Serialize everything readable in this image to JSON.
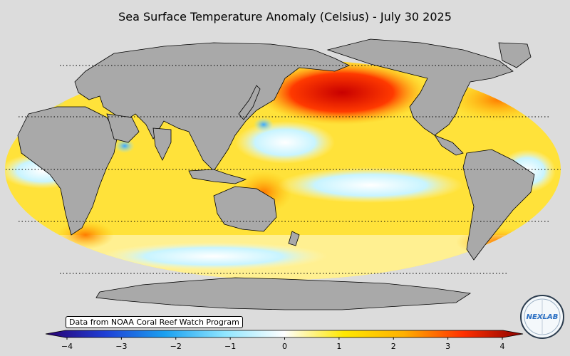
{
  "title": "Sea Surface Temperature Anomaly (Celsius) - July 30 2025",
  "source": "Data from NOAA Coral Reef Watch Program",
  "logo_text": "NEXLAB",
  "colorbar": {
    "min": -4,
    "max": 4,
    "ticks": [
      {
        "value": -4,
        "label": "−4"
      },
      {
        "value": -3,
        "label": "−3"
      },
      {
        "value": -2,
        "label": "−2"
      },
      {
        "value": -1,
        "label": "−1"
      },
      {
        "value": 0,
        "label": "0"
      },
      {
        "value": 1,
        "label": "1"
      },
      {
        "value": 2,
        "label": "2"
      },
      {
        "value": 3,
        "label": "3"
      },
      {
        "value": 4,
        "label": "4"
      }
    ],
    "stops": [
      {
        "value": -4,
        "color": "#2a0070"
      },
      {
        "value": -3,
        "color": "#1f3fd6"
      },
      {
        "value": -2,
        "color": "#1aa0f0"
      },
      {
        "value": -1,
        "color": "#8fe6ff"
      },
      {
        "value": 0,
        "color": "#ffffff"
      },
      {
        "value": 1,
        "color": "#ffe800"
      },
      {
        "value": 2,
        "color": "#ffb000"
      },
      {
        "value": 3,
        "color": "#ff3000"
      },
      {
        "value": 4,
        "color": "#8a0000"
      }
    ]
  },
  "colors": {
    "land": "#a9a9a9",
    "background": "#dcdcdc",
    "ocean_base": "#ffe23a",
    "warm_anomaly": "#d40000",
    "cool_anomaly": "#b8f0ff"
  }
}
